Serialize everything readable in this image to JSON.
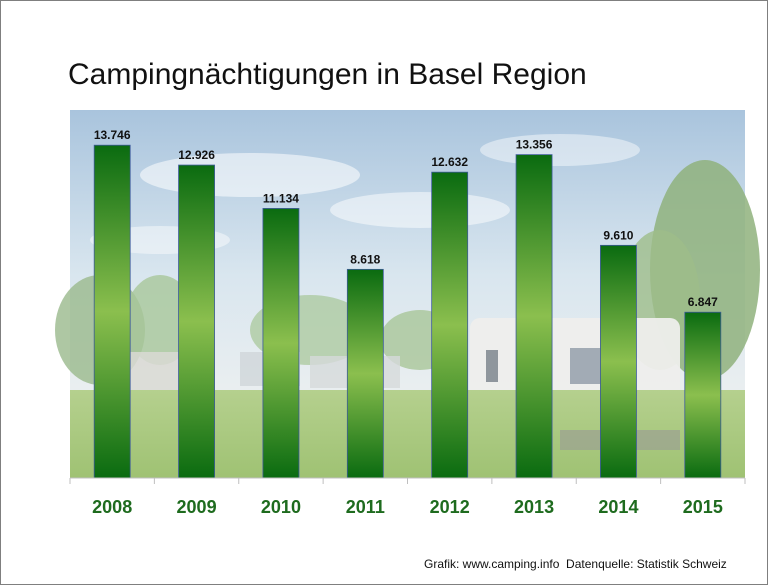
{
  "title": "Campingnächtigungen in Basel Region",
  "footer": "Grafik: www.camping.info  Datenquelle: Statistik Schweiz",
  "colors": {
    "bar_dark": "#0a6b10",
    "bar_light": "#8bbf4e",
    "axis_label": "#1e6b1e",
    "value_label": "#111111"
  },
  "chart_data": {
    "type": "bar",
    "title": "Campingnächtigungen in Basel Region",
    "categories": [
      "2008",
      "2009",
      "2010",
      "2011",
      "2012",
      "2013",
      "2014",
      "2015"
    ],
    "values": [
      13746,
      12926,
      11134,
      8618,
      12632,
      13356,
      9610,
      6847
    ],
    "value_labels": [
      "13.746",
      "12.926",
      "11.134",
      "8.618",
      "12.632",
      "13.356",
      "9.610",
      "6.847"
    ],
    "xlabel": "",
    "ylabel": "",
    "ylim": [
      0,
      15200
    ],
    "grid": false,
    "legend": "none"
  }
}
